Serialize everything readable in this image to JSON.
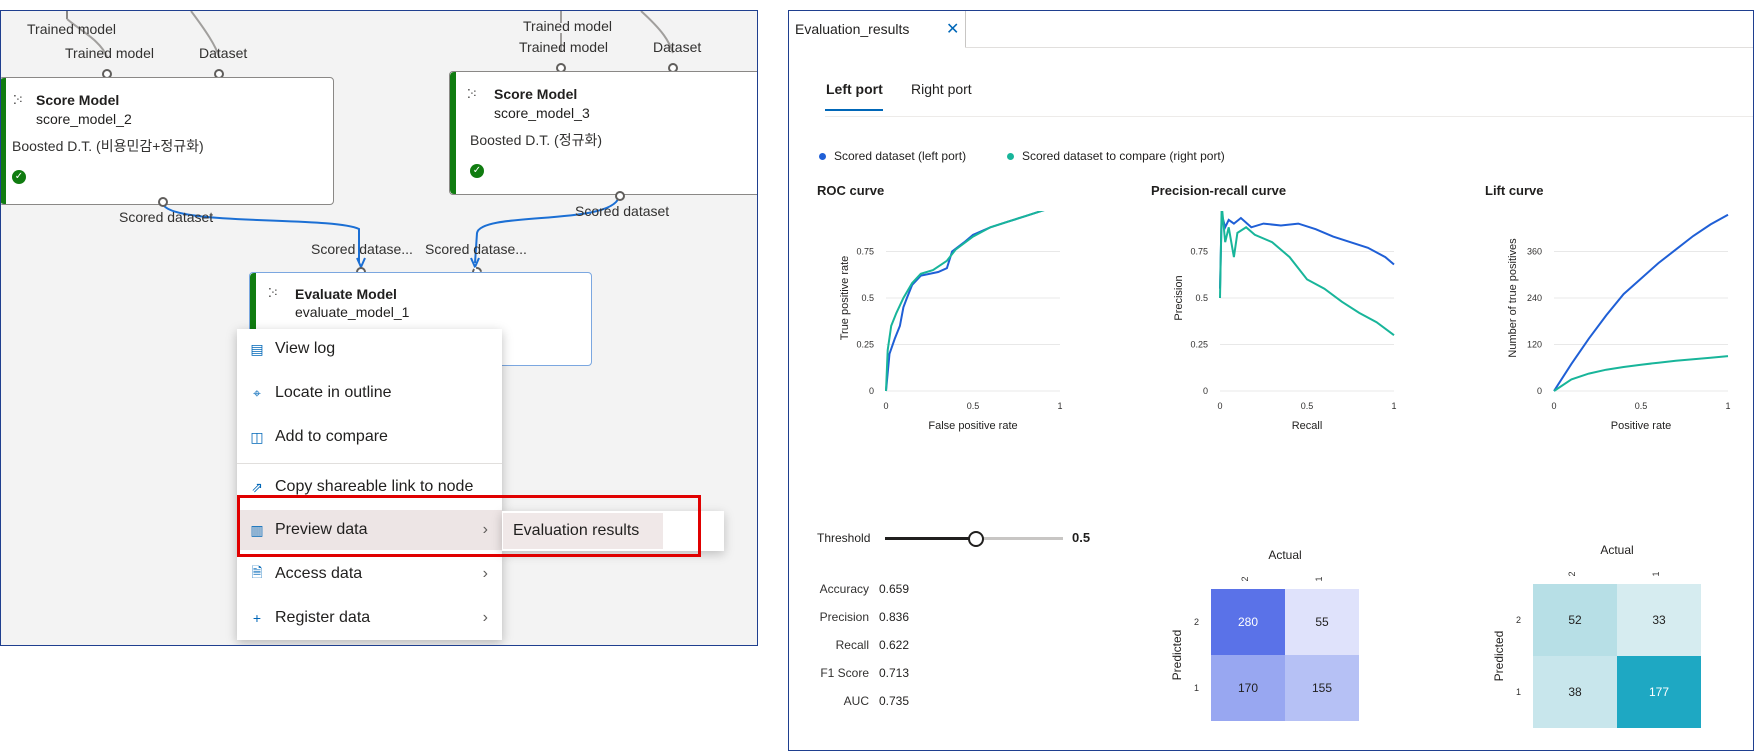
{
  "canvas": {
    "top_partial_label": "Trained model",
    "node1": {
      "port_labels": [
        "Trained model",
        "Dataset"
      ],
      "title": "Score Model",
      "id": "score_model_2",
      "desc": "Boosted D.T. (비용민감+정규화)",
      "out_label": "Scored dataset"
    },
    "node2": {
      "top_label": "Trained model",
      "port_labels": [
        "Trained model",
        "Dataset"
      ],
      "title": "Score Model",
      "id": "score_model_3",
      "desc": "Boosted D.T. (정규화)",
      "out_label": "Scored dataset"
    },
    "evaluate": {
      "in_labels": [
        "Scored datase...",
        "Scored datase..."
      ],
      "title": "Evaluate Model",
      "id": "evaluate_model_1"
    },
    "colors": {
      "success": "#107c10",
      "edge": "#1b6fd4",
      "highlight_box": "#e00000"
    }
  },
  "context_menu": {
    "items": [
      {
        "label": "View log",
        "icon": "document-icon"
      },
      {
        "label": "Locate in outline",
        "icon": "locate-icon"
      },
      {
        "label": "Add to compare",
        "icon": "compare-icon"
      },
      {
        "label": "Copy shareable link to node",
        "icon": "share-icon"
      },
      {
        "label": "Preview data",
        "icon": "chart-icon",
        "submenu": true
      },
      {
        "label": "Access data",
        "icon": "file-lock-icon",
        "submenu": true
      },
      {
        "label": "Register data",
        "icon": "plus-icon",
        "submenu": true
      }
    ],
    "submenu_item": "Evaluation results"
  },
  "results": {
    "tab_title": "Evaluation_results",
    "port_tabs": [
      "Left port",
      "Right port"
    ],
    "legend": [
      {
        "label": "Scored dataset (left port)",
        "color": "#1f5fd6"
      },
      {
        "label": "Scored dataset to compare (right port)",
        "color": "#18b59a"
      }
    ],
    "threshold": {
      "label": "Threshold",
      "value": "0.5",
      "fraction": 0.5
    },
    "metrics": [
      {
        "label": "Accuracy",
        "value": "0.659"
      },
      {
        "label": "Precision",
        "value": "0.836"
      },
      {
        "label": "Recall",
        "value": "0.622"
      },
      {
        "label": "F1 Score",
        "value": "0.713"
      },
      {
        "label": "AUC",
        "value": "0.735"
      }
    ]
  },
  "chart_data": [
    {
      "type": "line",
      "title": "ROC curve",
      "xlabel": "False positive rate",
      "ylabel": "True positive rate",
      "xlim": [
        0,
        1
      ],
      "ylim": [
        0,
        1
      ],
      "xticks": [
        "0",
        "0.5",
        "1"
      ],
      "yticks": [
        "0",
        "0.25",
        "0.5",
        "0.75",
        "1"
      ],
      "series": [
        {
          "name": "Scored dataset (left port)",
          "color": "#1f5fd6",
          "x": [
            0,
            0.02,
            0.05,
            0.08,
            0.1,
            0.12,
            0.15,
            0.2,
            0.3,
            0.35,
            0.38,
            0.45,
            0.5,
            0.6,
            0.7,
            0.8,
            0.9,
            1
          ],
          "y": [
            0,
            0.2,
            0.28,
            0.35,
            0.45,
            0.5,
            0.57,
            0.62,
            0.64,
            0.66,
            0.75,
            0.8,
            0.84,
            0.88,
            0.91,
            0.94,
            0.97,
            1
          ]
        },
        {
          "name": "Scored dataset to compare (right port)",
          "color": "#18b59a",
          "x": [
            0,
            0.01,
            0.03,
            0.06,
            0.1,
            0.15,
            0.2,
            0.27,
            0.35,
            0.4,
            0.5,
            0.6,
            0.7,
            0.8,
            0.9,
            1
          ],
          "y": [
            0,
            0.22,
            0.35,
            0.42,
            0.5,
            0.58,
            0.63,
            0.65,
            0.7,
            0.76,
            0.83,
            0.88,
            0.91,
            0.94,
            0.97,
            1
          ]
        }
      ]
    },
    {
      "type": "line",
      "title": "Precision-recall curve",
      "xlabel": "Recall",
      "ylabel": "Precision",
      "xlim": [
        0,
        1
      ],
      "ylim": [
        0,
        1
      ],
      "xticks": [
        "0",
        "0.5",
        "1"
      ],
      "yticks": [
        "0",
        "0.25",
        "0.5",
        "0.75",
        "1"
      ],
      "series": [
        {
          "name": "Scored dataset (left port)",
          "color": "#1f5fd6",
          "x": [
            0,
            0.01,
            0.03,
            0.05,
            0.08,
            0.12,
            0.18,
            0.25,
            0.35,
            0.45,
            0.55,
            0.65,
            0.75,
            0.85,
            0.95,
            1
          ],
          "y": [
            0.55,
            0.95,
            0.88,
            0.92,
            0.9,
            0.93,
            0.88,
            0.9,
            0.89,
            0.9,
            0.87,
            0.83,
            0.8,
            0.77,
            0.72,
            0.68
          ]
        },
        {
          "name": "Scored dataset to compare (right port)",
          "color": "#18b59a",
          "x": [
            0,
            0.01,
            0.03,
            0.05,
            0.08,
            0.1,
            0.15,
            0.2,
            0.3,
            0.4,
            0.5,
            0.6,
            0.7,
            0.8,
            0.9,
            1
          ],
          "y": [
            0.5,
            1.0,
            0.8,
            0.88,
            0.72,
            0.85,
            0.88,
            0.84,
            0.8,
            0.72,
            0.6,
            0.55,
            0.48,
            0.42,
            0.37,
            0.3
          ]
        }
      ]
    },
    {
      "type": "line",
      "title": "Lift curve",
      "xlabel": "Positive rate",
      "ylabel": "Number of true positives",
      "xlim": [
        0,
        1
      ],
      "ylim": [
        0,
        480
      ],
      "xticks": [
        "0",
        "0.5",
        "1"
      ],
      "yticks": [
        "0",
        "120",
        "240",
        "360",
        "480"
      ],
      "series": [
        {
          "name": "Scored dataset (left port)",
          "color": "#1f5fd6",
          "x": [
            0,
            0.1,
            0.2,
            0.3,
            0.4,
            0.5,
            0.6,
            0.7,
            0.8,
            0.9,
            1
          ],
          "y": [
            0,
            70,
            135,
            195,
            250,
            290,
            330,
            365,
            400,
            430,
            455
          ]
        },
        {
          "name": "Scored dataset to compare (right port)",
          "color": "#18b59a",
          "x": [
            0,
            0.1,
            0.2,
            0.3,
            0.4,
            0.5,
            0.6,
            0.7,
            0.8,
            0.9,
            1
          ],
          "y": [
            0,
            30,
            45,
            55,
            62,
            68,
            73,
            78,
            82,
            86,
            90
          ]
        }
      ]
    },
    {
      "type": "heatmap",
      "title": "",
      "xlabel": "Actual",
      "ylabel": "Predicted",
      "col_labels": [
        "2",
        "1"
      ],
      "row_labels": [
        "2",
        "1"
      ],
      "values": [
        [
          280,
          55
        ],
        [
          170,
          155
        ]
      ],
      "colors": [
        [
          "#5a72e8",
          "#dfe2fb"
        ],
        [
          "#98a7f1",
          "#b6c1f5"
        ]
      ]
    },
    {
      "type": "heatmap",
      "title": "",
      "xlabel": "Actual",
      "ylabel": "Predicted",
      "col_labels": [
        "2",
        "1"
      ],
      "row_labels": [
        "2",
        "1"
      ],
      "values": [
        [
          52,
          33
        ],
        [
          38,
          177
        ]
      ],
      "colors": [
        [
          "#b7dfe6",
          "#d6ecf0"
        ],
        [
          "#c8e6ec",
          "#1ea8c3"
        ]
      ]
    }
  ]
}
